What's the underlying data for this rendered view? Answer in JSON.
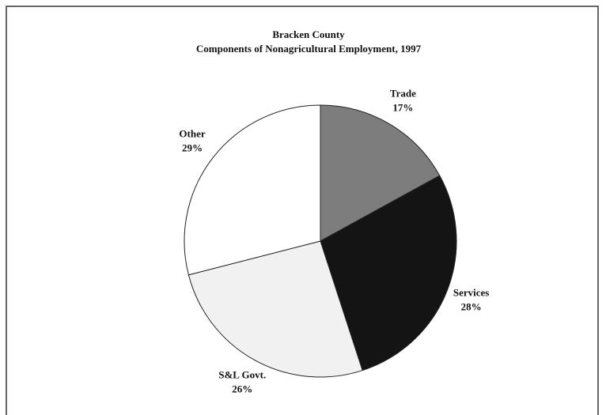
{
  "chart_data": {
    "type": "pie",
    "title": "Bracken County",
    "subtitle": "Components of Nonagricultural Employment, 1997",
    "categories": [
      "Trade",
      "Services",
      "S&L Govt.",
      "Other"
    ],
    "values": [
      17,
      28,
      26,
      29
    ],
    "value_labels": [
      "17%",
      "28%",
      "26%",
      "29%"
    ],
    "colors": [
      "#7d7d7d",
      "#141414",
      "#f1f1f1",
      "#ffffff"
    ]
  }
}
